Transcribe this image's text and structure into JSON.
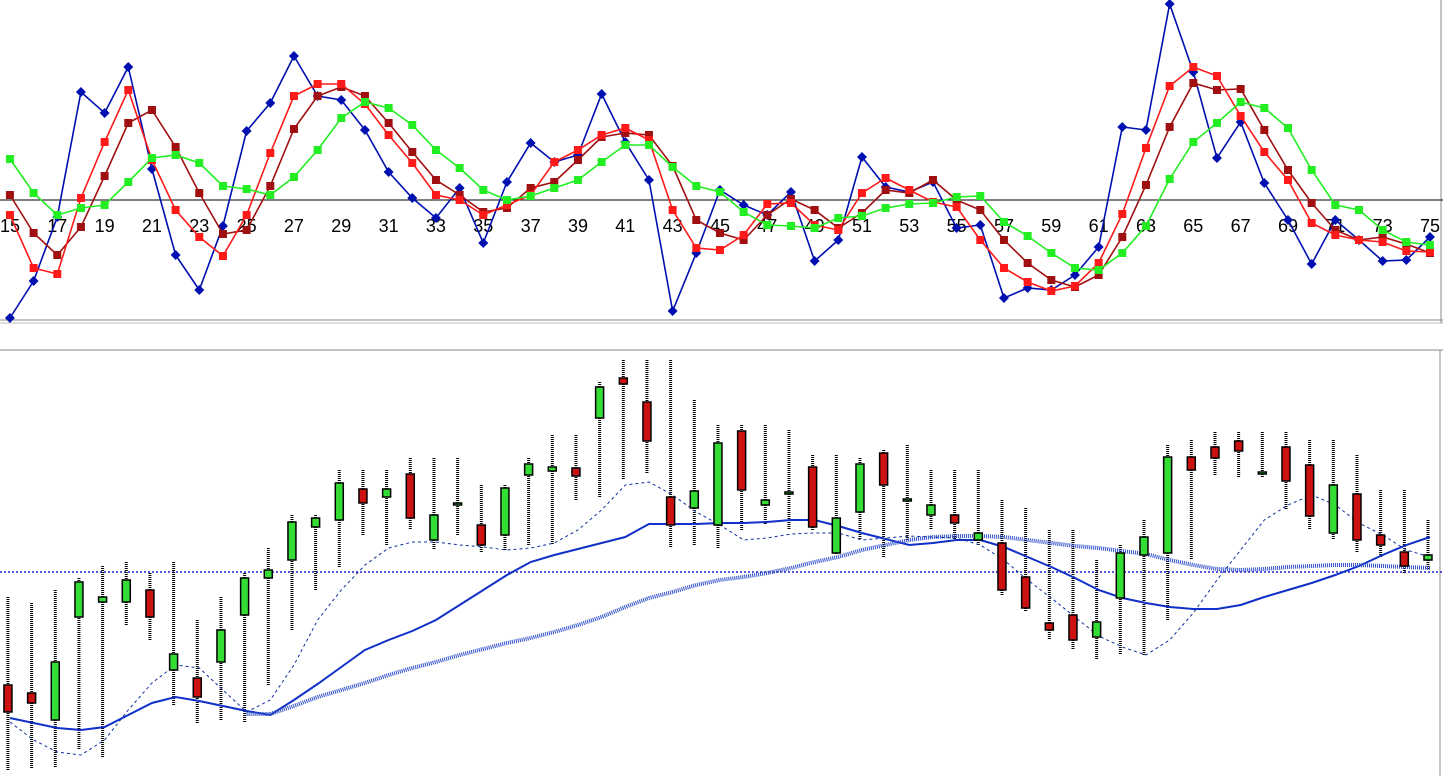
{
  "chart_data": [
    {
      "type": "line",
      "x": [
        15,
        16,
        17,
        18,
        19,
        20,
        21,
        22,
        23,
        24,
        25,
        26,
        27,
        28,
        29,
        30,
        31,
        32,
        33,
        34,
        35,
        36,
        37,
        38,
        39,
        40,
        41,
        42,
        43,
        44,
        45,
        46,
        47,
        48,
        49,
        50,
        51,
        52,
        53,
        54,
        55,
        56,
        57,
        58,
        59,
        60,
        61,
        62,
        63,
        64,
        65,
        66,
        67,
        68,
        69,
        70,
        71,
        72,
        73,
        74,
        75
      ],
      "xlim": [
        14.58,
        75.55
      ],
      "xticks": [
        15,
        17,
        19,
        21,
        23,
        25,
        27,
        29,
        31,
        33,
        35,
        37,
        39,
        41,
        43,
        45,
        47,
        49,
        51,
        53,
        55,
        57,
        59,
        61,
        63,
        65,
        67,
        69,
        71,
        73,
        75
      ],
      "ylim": [
        -122,
        200
      ],
      "baseline": 0,
      "series": [
        {
          "color": "#0010b0",
          "marker": "diamond",
          "values": [
            -118,
            -81,
            -17,
            108,
            87,
            133,
            31,
            -55,
            -90,
            -26,
            69,
            97,
            144,
            104,
            100,
            70,
            28,
            2,
            -18,
            12,
            -43,
            18,
            57,
            38,
            45,
            106,
            58,
            20,
            -111,
            -53,
            10,
            -5,
            -15,
            8,
            -61,
            -40,
            43,
            13,
            8,
            18,
            -28,
            -25,
            -98,
            -88,
            -90,
            -75,
            -47,
            73,
            70,
            196,
            128,
            42,
            78,
            17,
            -20,
            -64,
            -20,
            -40,
            -61,
            -60,
            -37
          ]
        },
        {
          "color": "#a01010",
          "marker": "square",
          "values": [
            5,
            -33,
            -55,
            -27,
            24,
            77,
            90,
            53,
            7,
            -34,
            -30,
            14,
            71,
            104,
            113,
            104,
            77,
            48,
            20,
            5,
            -12,
            -8,
            12,
            18,
            40,
            63,
            67,
            65,
            34,
            -20,
            -33,
            -40,
            -15,
            1,
            -10,
            -28,
            -13,
            10,
            7,
            20,
            0,
            -10,
            -40,
            -63,
            -80,
            -87,
            -75,
            -37,
            15,
            73,
            117,
            110,
            111,
            70,
            30,
            -3,
            -30,
            -40,
            -37,
            -44,
            -53
          ]
        },
        {
          "color": "#ff1a1a",
          "marker": "square",
          "values": [
            -15,
            -68,
            -74,
            2,
            58,
            110,
            40,
            -10,
            -37,
            -56,
            -15,
            47,
            104,
            116,
            116,
            96,
            65,
            37,
            5,
            0,
            -15,
            -5,
            5,
            38,
            50,
            65,
            72,
            60,
            -10,
            -48,
            -50,
            -35,
            -4,
            -3,
            -25,
            -30,
            7,
            22,
            10,
            -2,
            -7,
            -40,
            -68,
            -82,
            -91,
            -86,
            -63,
            -14,
            52,
            114,
            133,
            124,
            84,
            48,
            20,
            -23,
            -35,
            -40,
            -42,
            -51,
            -52
          ]
        },
        {
          "color": "#22ee22",
          "marker": "square",
          "values": [
            41,
            7,
            -15,
            -8,
            -5,
            18,
            42,
            45,
            37,
            14,
            11,
            5,
            23,
            50,
            82,
            98,
            92,
            75,
            50,
            32,
            10,
            0,
            4,
            12,
            20,
            38,
            55,
            55,
            33,
            14,
            8,
            -12,
            -25,
            -26,
            -28,
            -18,
            -16,
            -8,
            -4,
            -3,
            3,
            4,
            -22,
            -36,
            -53,
            -68,
            -70,
            -53,
            -26,
            21,
            58,
            77,
            98,
            92,
            72,
            30,
            -5,
            -10,
            -30,
            -42,
            -45
          ]
        }
      ]
    },
    {
      "type": "candlestick",
      "x": [
        15,
        16,
        17,
        18,
        19,
        20,
        21,
        22,
        23,
        24,
        25,
        26,
        27,
        28,
        29,
        30,
        31,
        32,
        33,
        34,
        35,
        36,
        37,
        38,
        39,
        40,
        41,
        42,
        43,
        44,
        45,
        46,
        47,
        48,
        49,
        50,
        51,
        52,
        53,
        54,
        55,
        56,
        57,
        58,
        59,
        60,
        61,
        62,
        63,
        64,
        65,
        66,
        67,
        68,
        69,
        70,
        71,
        72,
        73,
        74,
        75
      ],
      "xlim": [
        14.58,
        75.55
      ],
      "ylim": [
        0,
        426
      ],
      "baseline": 204,
      "up_color": "#33dd33",
      "down_color": "#cc1111",
      "open": [
        91,
        83,
        56,
        159,
        174,
        174,
        186,
        106,
        98,
        114,
        161,
        198,
        216,
        249,
        256,
        287,
        279,
        302,
        236,
        271,
        251,
        241,
        301,
        305,
        308,
        358,
        398,
        374,
        279,
        268,
        251,
        345,
        271,
        282,
        309,
        223,
        264,
        323,
        275,
        261,
        261,
        236,
        233,
        199,
        153,
        161,
        139,
        178,
        221,
        223,
        319,
        329,
        335,
        302,
        329,
        311,
        243,
        282,
        241,
        224,
        216
      ],
      "high": [
        179,
        173,
        186,
        198,
        210,
        214,
        203,
        214,
        156,
        179,
        203,
        228,
        261,
        261,
        306,
        306,
        306,
        318,
        318,
        318,
        291,
        291,
        318,
        341,
        341,
        394,
        416,
        416,
        416,
        376,
        351,
        351,
        351,
        346,
        321,
        321,
        318,
        326,
        331,
        306,
        306,
        306,
        276,
        268,
        246,
        246,
        216,
        231,
        256,
        331,
        336,
        344,
        344,
        344,
        344,
        336,
        336,
        321,
        286,
        286,
        256
      ],
      "low": [
        6,
        8,
        8,
        26,
        19,
        151,
        136,
        71,
        53,
        56,
        54,
        90,
        146,
        186,
        208,
        241,
        231,
        246,
        226,
        241,
        224,
        226,
        231,
        231,
        276,
        279,
        296,
        303,
        228,
        231,
        228,
        246,
        251,
        246,
        246,
        221,
        236,
        218,
        236,
        246,
        236,
        231,
        181,
        164,
        136,
        126,
        116,
        121,
        121,
        156,
        216,
        301,
        298,
        298,
        266,
        246,
        236,
        223,
        218,
        203,
        206
      ],
      "close": [
        64,
        73,
        114,
        194,
        179,
        196,
        159,
        122,
        79,
        146,
        198,
        206,
        254,
        258,
        293,
        273,
        287,
        258,
        261,
        273,
        231,
        288,
        312,
        309,
        300,
        389,
        392,
        335,
        251,
        285,
        333,
        286,
        276,
        284,
        249,
        258,
        312,
        291,
        277,
        271,
        253,
        243,
        186,
        168,
        146,
        136,
        154,
        223,
        239,
        319,
        306,
        318,
        325,
        304,
        295,
        260,
        291,
        236,
        231,
        210,
        221
      ],
      "lines": [
        {
          "color": "#1030c8",
          "style": "solid",
          "values": [
            58,
            53,
            48,
            46,
            49,
            61,
            73,
            79,
            75,
            70,
            65,
            61,
            76,
            92,
            109,
            126,
            136,
            145,
            156,
            171,
            186,
            201,
            214,
            221,
            227,
            233,
            239,
            252,
            252,
            252,
            253,
            253,
            254,
            256,
            256,
            250,
            243,
            237,
            231,
            233,
            236,
            236,
            229,
            219,
            209,
            198,
            186,
            178,
            173,
            169,
            167,
            167,
            171,
            179,
            186,
            193,
            201,
            210,
            221,
            231,
            239
          ]
        },
        {
          "color": "#3050c8",
          "style": "double",
          "values": [
            null,
            null,
            null,
            null,
            null,
            null,
            null,
            null,
            null,
            null,
            62,
            62,
            70,
            79,
            86,
            93,
            101,
            108,
            114,
            121,
            127,
            133,
            138,
            144,
            151,
            159,
            169,
            178,
            184,
            191,
            196,
            199,
            203,
            208,
            214,
            219,
            226,
            231,
            236,
            239,
            240,
            240,
            239,
            236,
            233,
            230,
            228,
            225,
            222,
            216,
            211,
            207,
            206,
            207,
            209,
            210,
            211,
            211,
            210,
            209,
            208
          ]
        },
        {
          "color": "#1030a0",
          "style": "dashed",
          "values": [
            54,
            36,
            24,
            21,
            36,
            66,
            93,
            111,
            108,
            86,
            64,
            76,
            111,
            156,
            186,
            211,
            228,
            234,
            234,
            231,
            229,
            226,
            228,
            233,
            246,
            266,
            291,
            294,
            281,
            264,
            251,
            236,
            238,
            242,
            243,
            243,
            236,
            238,
            240,
            239,
            238,
            231,
            216,
            196,
            178,
            159,
            140,
            129,
            121,
            136,
            163,
            196,
            226,
            256,
            271,
            281,
            271,
            253,
            241,
            226,
            219
          ]
        }
      ]
    }
  ]
}
